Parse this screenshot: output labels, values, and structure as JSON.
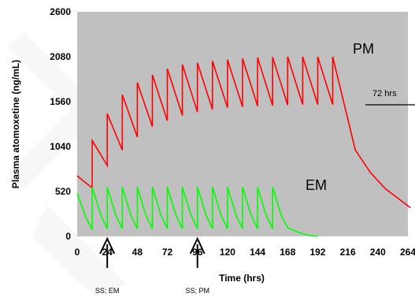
{
  "chart_data": {
    "type": "line",
    "title": "",
    "xlabel": "Time (hrs)",
    "ylabel": "Plasma atomoxetine (ng/mL)",
    "xlim": [
      0,
      264
    ],
    "ylim": [
      0,
      2600
    ],
    "xticks": [
      "0",
      "24",
      "48",
      "72",
      "96",
      "120",
      "144",
      "168",
      "192",
      "216",
      "240",
      "264"
    ],
    "yticks": [
      "0",
      "520",
      "1040",
      "1560",
      "2080",
      "2600"
    ],
    "grid": false,
    "plot_background": "#c0c0c0",
    "series": [
      {
        "name": "PM",
        "color": "#ff0000",
        "x": [
          0,
          12,
          12,
          24,
          24,
          36,
          36,
          48,
          48,
          60,
          60,
          72,
          72,
          84,
          84,
          96,
          96,
          108,
          108,
          120,
          120,
          132,
          132,
          144,
          144,
          156,
          156,
          168,
          168,
          180,
          180,
          192,
          192,
          204,
          204,
          222,
          234,
          246,
          258,
          266
        ],
        "y": [
          700,
          560,
          1110,
          820,
          1420,
          1000,
          1640,
          1150,
          1780,
          1270,
          1870,
          1340,
          1940,
          1400,
          1990,
          1440,
          2010,
          1470,
          2030,
          1490,
          2045,
          1500,
          2060,
          1510,
          2070,
          1515,
          2075,
          1520,
          2080,
          1525,
          2080,
          1525,
          2080,
          1525,
          2080,
          1000,
          740,
          550,
          420,
          330
        ]
      },
      {
        "name": "EM",
        "color": "#00ff00",
        "x": [
          0,
          7,
          12,
          12,
          19,
          24,
          24,
          31,
          36,
          36,
          43,
          48,
          48,
          55,
          60,
          60,
          67,
          72,
          72,
          79,
          84,
          84,
          91,
          96,
          96,
          103,
          108,
          108,
          115,
          120,
          120,
          127,
          132,
          132,
          139,
          144,
          144,
          151,
          156,
          156,
          163,
          168,
          176,
          184,
          192
        ],
        "y": [
          500,
          220,
          80,
          570,
          240,
          90,
          570,
          240,
          90,
          570,
          240,
          90,
          570,
          240,
          90,
          570,
          240,
          90,
          570,
          240,
          90,
          570,
          240,
          90,
          570,
          240,
          90,
          570,
          240,
          90,
          570,
          240,
          90,
          570,
          240,
          90,
          570,
          240,
          90,
          570,
          240,
          100,
          50,
          15,
          0
        ]
      }
    ],
    "annotations": [
      {
        "text": "PM",
        "near": "top-right, above red curve"
      },
      {
        "text": "EM",
        "near": "right, above green curve"
      },
      {
        "text": "72 hrs",
        "near": "right edge, half-life marker"
      },
      {
        "text": "SS; EM",
        "arrow_x": 24
      },
      {
        "text": "SS; PM",
        "arrow_x": 96
      }
    ]
  }
}
